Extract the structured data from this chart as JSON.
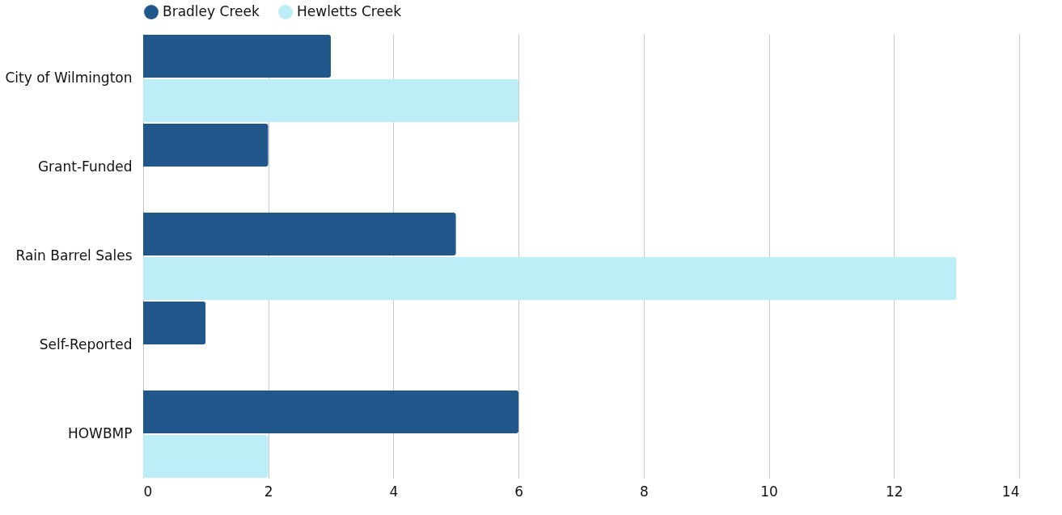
{
  "chart_data": {
    "type": "bar",
    "orientation": "horizontal",
    "categories": [
      "City of Wilmington",
      "Grant-Funded",
      "Rain Barrel Sales",
      "Self-Reported",
      "HOWBMP"
    ],
    "series": [
      {
        "name": "Bradley Creek",
        "color": "#21578a",
        "values": [
          3,
          2,
          5,
          1,
          6
        ]
      },
      {
        "name": "Hewletts Creek",
        "color": "#bdeef8",
        "values": [
          6,
          null,
          13,
          null,
          2
        ]
      }
    ],
    "xlim": [
      0,
      14
    ],
    "xticks": [
      0,
      2,
      4,
      6,
      8,
      10,
      12,
      14
    ],
    "grid": "x",
    "legend": "top"
  }
}
